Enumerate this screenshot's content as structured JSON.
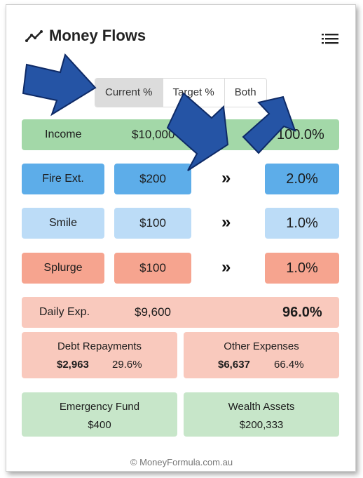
{
  "header": {
    "title": "Money Flows",
    "icon": "trend-line-icon",
    "menu_icon": "menu-icon"
  },
  "tabs": [
    {
      "label": "Current %",
      "active": true
    },
    {
      "label": "Target %",
      "active": false
    },
    {
      "label": "Both",
      "active": false
    }
  ],
  "income": {
    "label": "Income",
    "amount": "$10,000",
    "percent": "100.0%"
  },
  "flows": [
    {
      "label": "Fire Ext.",
      "amount": "$200",
      "percent": "2.0%",
      "color": "#5dade9"
    },
    {
      "label": "Smile",
      "amount": "$100",
      "percent": "1.0%",
      "color": "#bcdcf7"
    },
    {
      "label": "Splurge",
      "amount": "$100",
      "percent": "1.0%",
      "color": "#f6a48f"
    }
  ],
  "daily": {
    "label": "Daily Exp.",
    "amount": "$9,600",
    "percent": "96.0%"
  },
  "debt": {
    "label": "Debt Repayments",
    "amount": "$2,963",
    "percent": "29.6%"
  },
  "other": {
    "label": "Other Expenses",
    "amount": "$6,637",
    "percent": "66.4%"
  },
  "emergency": {
    "label": "Emergency Fund",
    "amount": "$400"
  },
  "wealth": {
    "label": "Wealth Assets",
    "amount": "$200,333"
  },
  "flow_icon": "double-chevron-right-icon",
  "footer": "© MoneyFormula.com.au",
  "colors": {
    "accent_arrow": "#2554a5",
    "income_green": "#a3d8a8",
    "expense_pink": "#f9c9bd"
  }
}
